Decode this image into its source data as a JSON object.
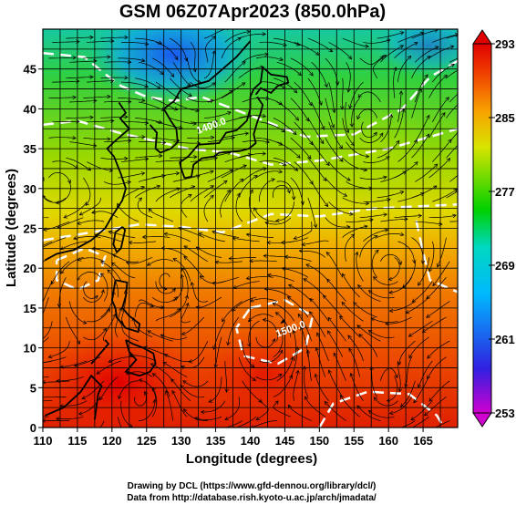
{
  "chart_data": {
    "type": "heatmap",
    "title": "GSM 06Z07Apr2023 (850.0hPa)",
    "xlabel": "Longitude (degrees)",
    "ylabel": "Latitude  (degrees)",
    "xlim": [
      110,
      170
    ],
    "ylim": [
      0,
      50
    ],
    "x_ticks": [
      110,
      115,
      120,
      125,
      130,
      135,
      140,
      145,
      150,
      155,
      160,
      165
    ],
    "y_ticks": [
      0,
      5,
      10,
      15,
      20,
      25,
      30,
      35,
      40,
      45
    ],
    "colorbar": {
      "ticks": [
        253,
        261,
        269,
        277,
        285,
        293
      ],
      "range": [
        253,
        293
      ],
      "colors": [
        "#d000d0",
        "#3020e0",
        "#00b8ff",
        "#00d8c0",
        "#00d000",
        "#d8e400",
        "#f8a000",
        "#f04000",
        "#e00000"
      ]
    },
    "contour_labels": [
      {
        "text": "1400.0",
        "lon": 134.5,
        "lat": 37.5
      },
      {
        "text": "1500.0",
        "lon": 146,
        "lat": 12
      }
    ],
    "grid": true
  },
  "credits": {
    "line1": "Drawing by DCL (https://www.gfd-dennou.org/library/dcl/)",
    "line2": "Data from http://database.rish.kyoto-u.ac.jp/arch/jmadata/"
  }
}
